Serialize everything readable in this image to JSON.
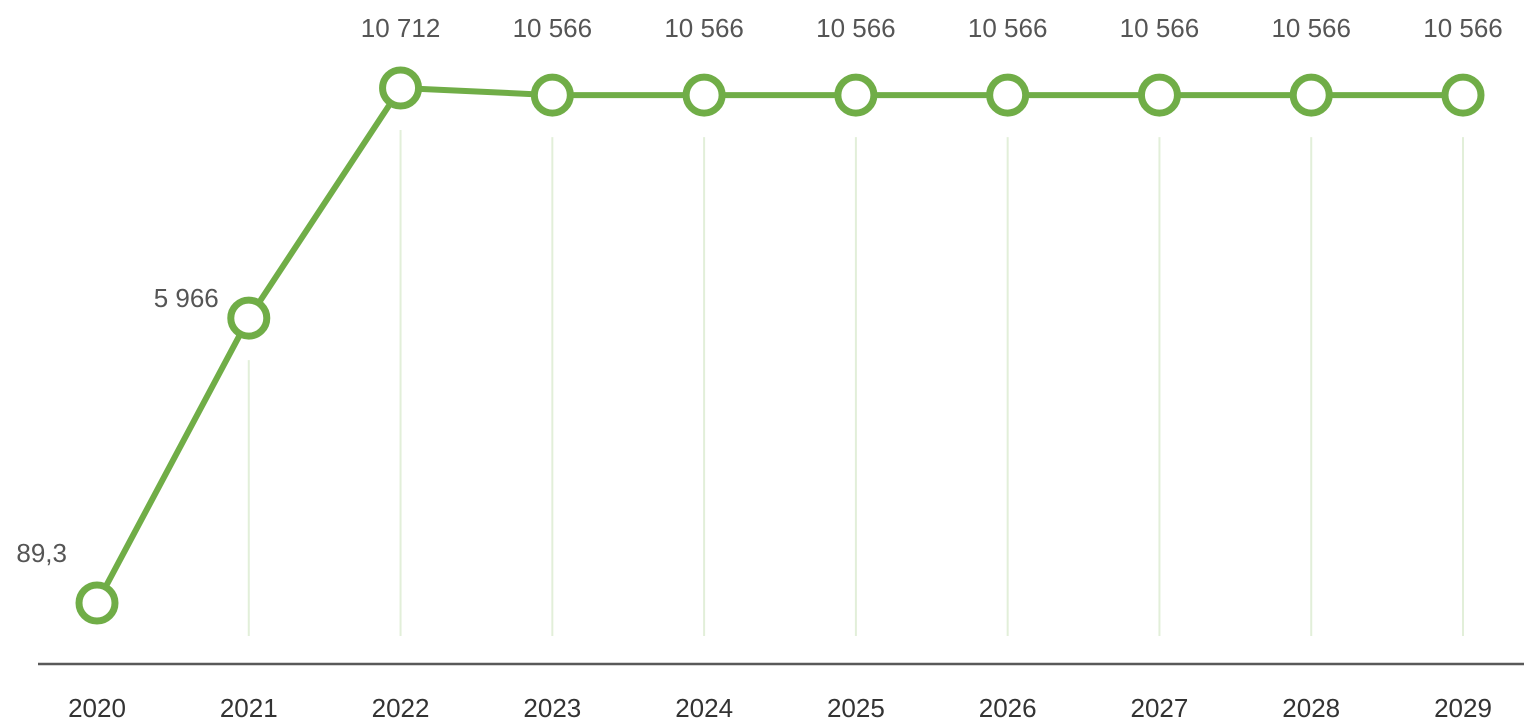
{
  "chart_data": {
    "type": "line",
    "categories": [
      "2020",
      "2021",
      "2022",
      "2023",
      "2024",
      "2025",
      "2026",
      "2027",
      "2028",
      "2029"
    ],
    "series": [
      {
        "color": "#70ad47",
        "values": [
          89.3,
          5966,
          10712,
          10566,
          10566,
          10566,
          10566,
          10566,
          10566,
          10566
        ],
        "value_labels": [
          "89,3",
          "5 966",
          "10 712",
          "10 566",
          "10 566",
          "10 566",
          "10 566",
          "10 566",
          "10 566",
          "10 566"
        ]
      }
    ]
  }
}
